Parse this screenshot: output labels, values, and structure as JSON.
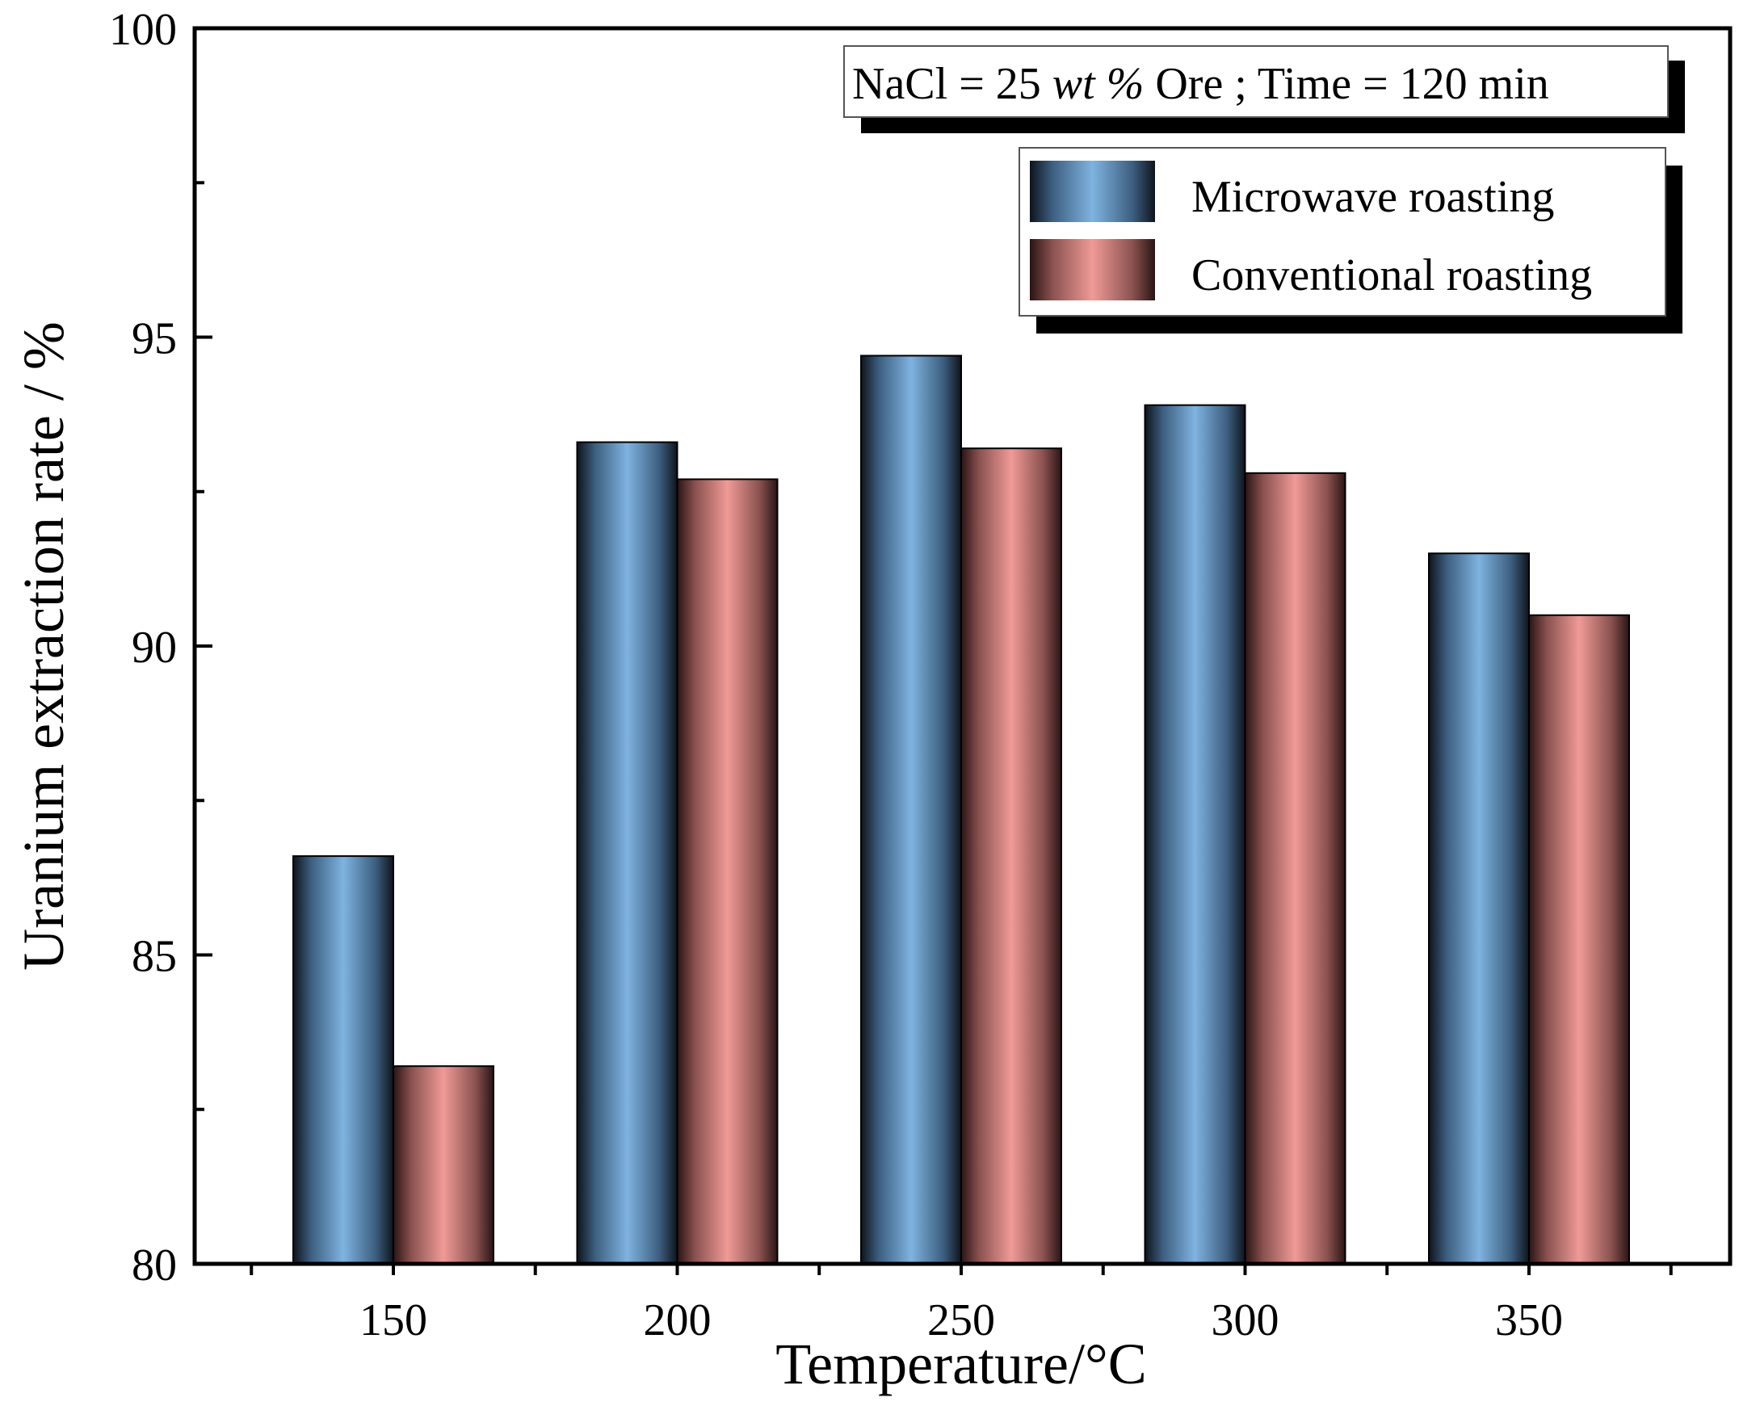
{
  "chart_data": {
    "type": "bar",
    "categories": [
      "150",
      "200",
      "250",
      "300",
      "350"
    ],
    "series": [
      {
        "name": "Microwave roasting",
        "values": [
          86.6,
          93.3,
          94.7,
          93.9,
          91.5
        ],
        "color": "#7fb3e0"
      },
      {
        "name": "Conventional roasting",
        "values": [
          83.2,
          92.7,
          93.2,
          92.8,
          90.5
        ],
        "color": "#f09a96"
      }
    ],
    "title": "",
    "xlabel": "Temperature/°C",
    "ylabel": "Uranium extraction rate / %",
    "ylim": [
      80,
      100
    ],
    "yticks": [
      "80",
      "85",
      "90",
      "95",
      "100"
    ],
    "grid": false,
    "legend_position": "top-right",
    "annotation": {
      "prefix": "NaCl = 25 ",
      "italic": "wt %",
      "suffix": " Ore ; Time = 120 min"
    }
  }
}
